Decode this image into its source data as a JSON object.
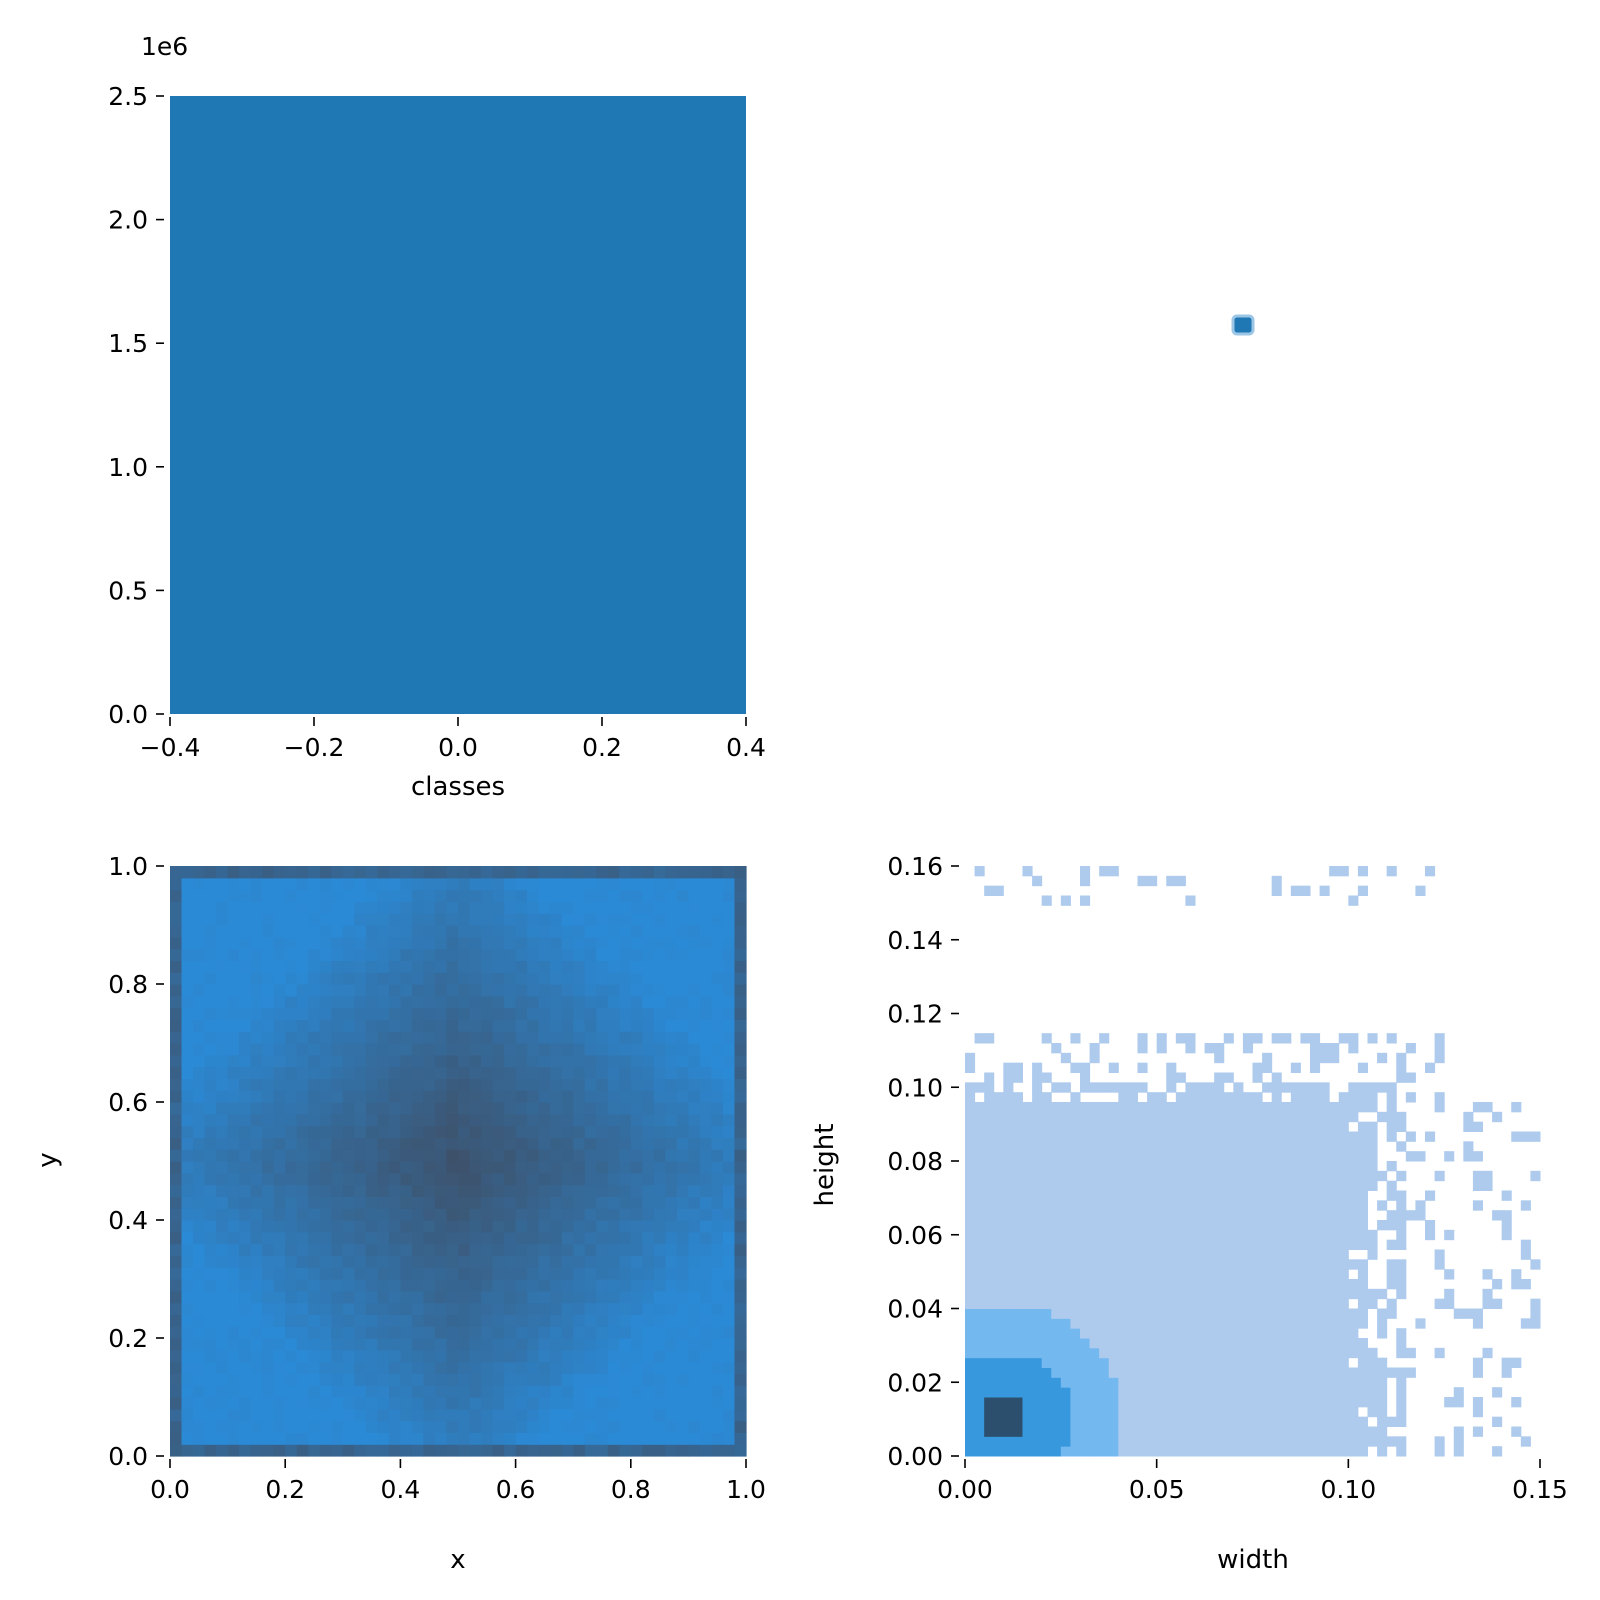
{
  "chart_data": [
    {
      "id": "classes-hist",
      "type": "bar",
      "xlabel": "classes",
      "ylabel": "",
      "offset_text": "1e6",
      "xlim": [
        -0.4,
        0.4
      ],
      "ylim": [
        0,
        2.5
      ],
      "x_ticks": [
        "−0.4",
        "−0.2",
        "0.0",
        "0.2",
        "0.4"
      ],
      "x_tick_values": [
        -0.4,
        -0.2,
        0.0,
        0.2,
        0.4
      ],
      "y_ticks": [
        "0.0",
        "0.5",
        "1.0",
        "1.5",
        "2.0",
        "2.5"
      ],
      "y_tick_values": [
        0,
        0.5,
        1.0,
        1.5,
        2.0,
        2.5
      ],
      "bars": [
        {
          "x0": -0.4,
          "x1": 0.4,
          "value": 2.5
        }
      ],
      "color": "#1f77b4"
    },
    {
      "id": "top-right-point",
      "type": "scatter",
      "xlabel": "",
      "ylabel": "",
      "points": [
        {
          "x": 0.5,
          "y": 0.5
        }
      ],
      "color": "#1f77b4"
    },
    {
      "id": "xy-hist2d",
      "type": "heatmap",
      "xlabel": "x",
      "ylabel": "y",
      "xlim": [
        0,
        1
      ],
      "ylim": [
        0,
        1
      ],
      "x_ticks": [
        "0.0",
        "0.2",
        "0.4",
        "0.6",
        "0.8",
        "1.0"
      ],
      "x_tick_values": [
        0,
        0.2,
        0.4,
        0.6,
        0.8,
        1.0
      ],
      "y_ticks": [
        "0.0",
        "0.2",
        "0.4",
        "0.6",
        "0.8",
        "1.0"
      ],
      "y_tick_values": [
        0,
        0.2,
        0.4,
        0.6,
        0.8,
        1.0
      ],
      "bins": 50,
      "density_peak": [
        0.5,
        0.5
      ],
      "color_low": "#2b8ad6",
      "color_high": "#3e5068"
    },
    {
      "id": "wh-hist2d",
      "type": "heatmap",
      "xlabel": "width",
      "ylabel": "height",
      "xlim": [
        0,
        0.15
      ],
      "ylim": [
        0,
        0.16
      ],
      "x_ticks": [
        "0.00",
        "0.05",
        "0.10",
        "0.15"
      ],
      "x_tick_values": [
        0,
        0.05,
        0.1,
        0.15
      ],
      "y_ticks": [
        "0.00",
        "0.02",
        "0.04",
        "0.06",
        "0.08",
        "0.10",
        "0.12",
        "0.14",
        "0.16"
      ],
      "y_tick_values": [
        0,
        0.02,
        0.04,
        0.06,
        0.08,
        0.1,
        0.12,
        0.14,
        0.16
      ],
      "bins": 60,
      "dense_region": {
        "width_max": 0.1,
        "height_max": 0.1
      },
      "density_peak": [
        0.01,
        0.01
      ],
      "color_low": "#aecbee",
      "color_mid": "#3aa5f2",
      "color_high": "#2d4f6e"
    }
  ]
}
